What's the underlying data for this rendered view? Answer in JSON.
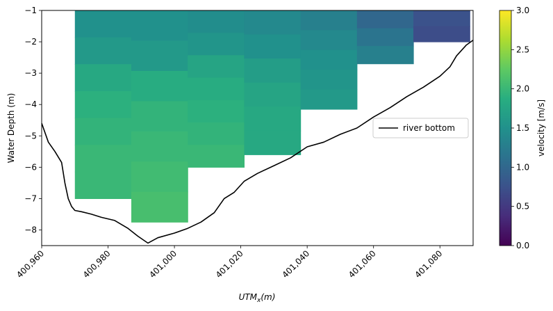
{
  "chart_data": {
    "type": "heatmap",
    "xlabel": "UTM_x(m)",
    "xlabel_main": "UTM",
    "xlabel_sub": "x",
    "xlabel_tail": "(m)",
    "ylabel": "Water Depth (m)",
    "xlim": [
      400960,
      401090
    ],
    "ylim": [
      -8.5,
      -1
    ],
    "x_ticks": [
      400960,
      400980,
      401000,
      401020,
      401040,
      401060,
      401080
    ],
    "x_tick_labels": [
      "400,960",
      "400,980",
      "401,000",
      "401,020",
      "401,040",
      "401,060",
      "401,080"
    ],
    "y_ticks": [
      -1,
      -2,
      -3,
      -4,
      -5,
      -6,
      -7,
      -8
    ],
    "y_tick_labels": [
      "−1",
      "−2",
      "−3",
      "−4",
      "−5",
      "−6",
      "−7",
      "−8"
    ],
    "colorbar": {
      "label": "velocity [m/s]",
      "range": [
        0,
        3
      ],
      "colormap": "viridis",
      "ticks": [
        0,
        0.5,
        1,
        1.5,
        2,
        2.5,
        3
      ],
      "tick_labels": [
        "0.0",
        "0.5",
        "1.0",
        "1.5",
        "2.0",
        "2.5",
        "3.0"
      ]
    },
    "legend": {
      "position": "center-right",
      "entries": [
        "river bottom"
      ]
    },
    "velocity_columns": [
      {
        "x0": 400970,
        "x1": 400987,
        "bottom": -7.0,
        "values": [
          1.5,
          1.6,
          1.8,
          1.9,
          1.95,
          2.0,
          2.0
        ]
      },
      {
        "x0": 400987,
        "x1": 401004,
        "bottom": -7.75,
        "values": [
          1.5,
          1.6,
          1.85,
          1.95,
          2.0,
          2.05,
          2.1
        ]
      },
      {
        "x0": 401004,
        "x1": 401021,
        "bottom": -6.0,
        "values": [
          1.45,
          1.55,
          1.75,
          1.85,
          1.9,
          1.95,
          2.0
        ]
      },
      {
        "x0": 401021,
        "x1": 401038,
        "bottom": -5.6,
        "values": [
          1.4,
          1.5,
          1.65,
          1.75,
          1.8,
          1.8
        ]
      },
      {
        "x0": 401038,
        "x1": 401055,
        "bottom": -4.15,
        "values": [
          1.3,
          1.4,
          1.5,
          1.55,
          1.6
        ]
      },
      {
        "x0": 401055,
        "x1": 401072,
        "bottom": -2.7,
        "values": [
          1.0,
          1.15,
          1.3
        ]
      },
      {
        "x0": 401072,
        "x1": 401089,
        "bottom": -2.0,
        "values": [
          0.75,
          0.7
        ]
      }
    ],
    "river_bottom": {
      "name": "river bottom",
      "color": "#000000",
      "x": [
        400960,
        400962,
        400964,
        400966,
        400967,
        400968,
        400969,
        400970,
        400972,
        400975,
        400978,
        400982,
        400986,
        400989,
        400992,
        400995,
        401000,
        401004,
        401008,
        401012,
        401015,
        401018,
        401021,
        401025,
        401030,
        401035,
        401040,
        401045,
        401050,
        401055,
        401060,
        401065,
        401070,
        401075,
        401080,
        401083,
        401085,
        401088,
        401090
      ],
      "y": [
        -4.6,
        -5.2,
        -5.5,
        -5.85,
        -6.5,
        -7.0,
        -7.25,
        -7.38,
        -7.42,
        -7.5,
        -7.6,
        -7.7,
        -7.95,
        -8.2,
        -8.42,
        -8.25,
        -8.1,
        -7.95,
        -7.75,
        -7.45,
        -7.0,
        -6.8,
        -6.45,
        -6.2,
        -5.95,
        -5.7,
        -5.35,
        -5.2,
        -4.95,
        -4.75,
        -4.4,
        -4.1,
        -3.75,
        -3.45,
        -3.1,
        -2.8,
        -2.45,
        -2.1,
        -1.95
      ]
    }
  }
}
